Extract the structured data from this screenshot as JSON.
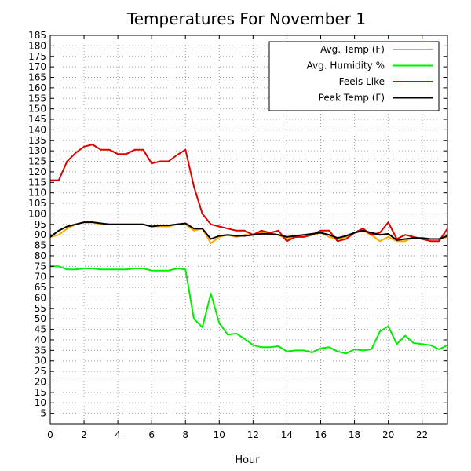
{
  "chart_data": {
    "type": "line",
    "title": "Temperatures For November 1",
    "xlabel": "Hour",
    "ylabel": "",
    "xlim": [
      0,
      23.5
    ],
    "ylim": [
      0,
      185
    ],
    "x_ticks": [
      0,
      2,
      4,
      6,
      8,
      10,
      12,
      14,
      16,
      18,
      20,
      22
    ],
    "y_ticks": [
      5,
      10,
      15,
      20,
      25,
      30,
      35,
      40,
      45,
      50,
      55,
      60,
      65,
      70,
      75,
      80,
      85,
      90,
      95,
      100,
      105,
      110,
      115,
      120,
      125,
      130,
      135,
      140,
      145,
      150,
      155,
      160,
      165,
      170,
      175,
      180,
      185
    ],
    "grid": true,
    "legend_position": "top-right",
    "x": [
      0,
      0.5,
      1,
      1.5,
      2,
      2.5,
      3,
      3.5,
      4,
      4.5,
      5,
      5.5,
      6,
      6.5,
      7,
      7.5,
      8,
      8.5,
      9,
      9.5,
      10,
      10.5,
      11,
      11.5,
      12,
      12.5,
      13,
      13.5,
      14,
      14.5,
      15,
      15.5,
      16,
      16.5,
      17,
      17.5,
      18,
      18.5,
      19,
      19.5,
      20,
      20.5,
      21,
      21.5,
      22,
      22.5,
      23,
      23.5
    ],
    "series": [
      {
        "name": "Avg. Temp (F)",
        "color": "#ffa500",
        "values": [
          89,
          90,
          93,
          95,
          96,
          96,
          95,
          95,
          95,
          95,
          95,
          95,
          94,
          94,
          94,
          95,
          95,
          92,
          93,
          86,
          89,
          90,
          89,
          90,
          90,
          91,
          91,
          90,
          88,
          89,
          89,
          90,
          91,
          89,
          88,
          89,
          91,
          92,
          90,
          87,
          89,
          87,
          87,
          89,
          88,
          88,
          88,
          89
        ]
      },
      {
        "name": "Avg. Humidity %",
        "color": "#00ee00",
        "values": [
          75,
          75,
          73.5,
          73.5,
          74,
          74,
          73.5,
          73.5,
          73.5,
          73.5,
          74,
          74,
          73,
          73,
          73,
          74,
          73.5,
          50,
          46,
          62,
          48,
          42.5,
          43,
          40.5,
          37.5,
          36.5,
          36.5,
          37,
          34.5,
          35,
          35,
          34,
          36,
          36.5,
          34.5,
          33.5,
          35.5,
          35,
          35.5,
          44,
          46.5,
          38,
          42,
          38.5,
          38,
          37.5,
          35.5,
          37.5
        ]
      },
      {
        "name": "Feels Like",
        "color": "#dd0000",
        "values": [
          116,
          116,
          125,
          129,
          132,
          133,
          130.5,
          130.5,
          128.5,
          128.5,
          130.5,
          130.5,
          124,
          125,
          125,
          128,
          130.5,
          113,
          100,
          95,
          94,
          93,
          92,
          92,
          90,
          92,
          91,
          92,
          87,
          89,
          89,
          90,
          92,
          92,
          87,
          88,
          91,
          93,
          90,
          91,
          96,
          88,
          90,
          89,
          88,
          87,
          87,
          93
        ]
      },
      {
        "name": "Peak Temp (F)",
        "color": "#000000",
        "values": [
          89,
          92,
          94,
          95,
          96,
          96,
          95.5,
          95,
          95,
          95,
          95,
          95,
          94,
          94.5,
          94.5,
          95,
          95.5,
          93,
          93,
          88,
          89.5,
          90,
          89.5,
          89.5,
          90,
          90.5,
          90.5,
          90,
          89,
          89.5,
          90,
          90.5,
          91,
          90,
          88.5,
          89.5,
          91,
          92,
          91,
          90,
          90.5,
          87.5,
          88,
          88.5,
          88.5,
          88,
          88,
          89.5
        ]
      }
    ]
  }
}
